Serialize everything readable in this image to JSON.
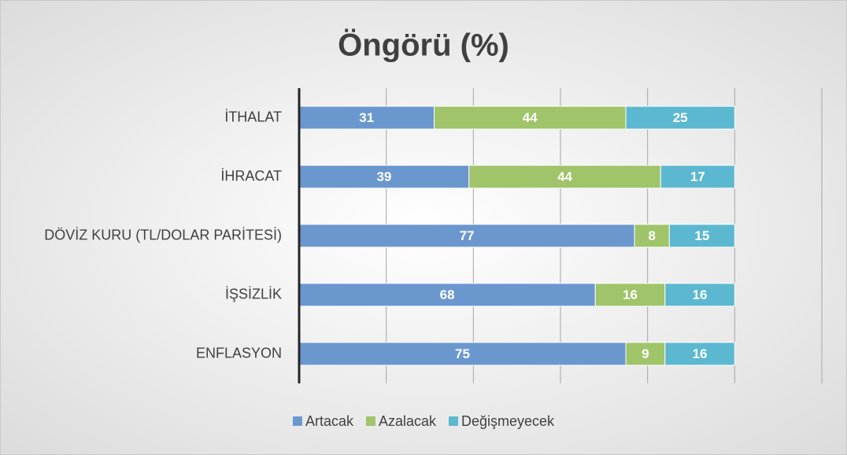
{
  "chart_data": {
    "type": "stacked-bar-horizontal",
    "title": "Öngörü (%)",
    "categories": [
      "İTHALAT",
      "İHRACAT",
      "DÖVİZ KURU (TL/DOLAR PARİTESİ)",
      "İŞSİZLİK",
      "ENFLASYON"
    ],
    "series": [
      {
        "name": "Artacak",
        "color": "#6b97cf",
        "values": [
          31,
          39,
          77,
          68,
          75
        ]
      },
      {
        "name": "Azalacak",
        "color": "#9fc46a",
        "values": [
          44,
          44,
          8,
          16,
          9
        ]
      },
      {
        "name": "Değişmeyecek",
        "color": "#5cb8d0",
        "values": [
          25,
          17,
          15,
          16,
          16
        ]
      }
    ],
    "xlim": [
      0,
      120
    ],
    "xticks": [
      0,
      20,
      40,
      60,
      80,
      100,
      120
    ],
    "grid": true,
    "legend": "bottom"
  }
}
